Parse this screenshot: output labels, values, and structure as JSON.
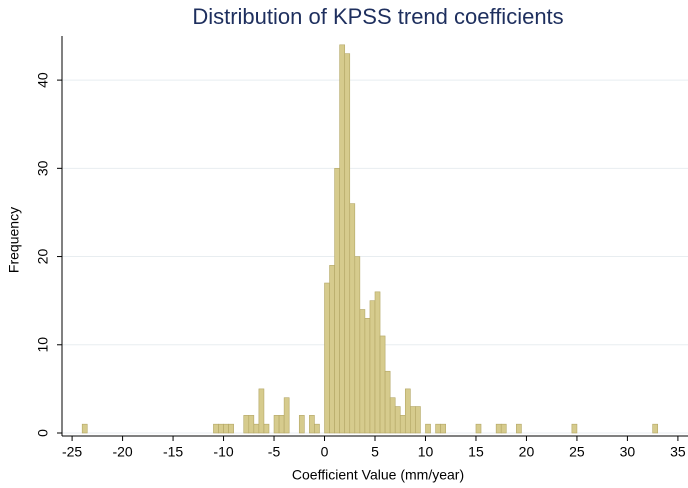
{
  "chart_data": {
    "type": "histogram",
    "title": "Distribution of KPSS trend coefficients",
    "x_label": "Coefficient Value (mm/year)",
    "y_label": "Frequency",
    "bins": [
      -24,
      -23.5,
      -23,
      -22.5,
      -22,
      -21.5,
      -21,
      -20.5,
      -20,
      -19.5,
      -19,
      -18.5,
      -18,
      -17.5,
      -17,
      -16.5,
      -16,
      -15.5,
      -15,
      -14.5,
      -14,
      -13.5,
      -13,
      -12.5,
      -12,
      -11.5,
      -11,
      -10.5,
      -10,
      -9.5,
      -9,
      -8.5,
      -8,
      -7.5,
      -7,
      -6.5,
      -6,
      -5.5,
      -5,
      -4.5,
      -4,
      -3.5,
      -3,
      -2.5,
      -2,
      -1.5,
      -1,
      -0.5,
      0,
      0.5,
      1,
      1.5,
      2,
      2.5,
      3,
      3.5,
      4,
      4.5,
      5,
      5.5,
      6,
      6.5,
      7,
      7.5,
      8,
      8.5,
      9,
      9.5,
      10,
      10.5,
      11,
      11.5,
      12,
      12.5,
      13,
      13.5,
      14,
      14.5,
      15,
      15.5,
      16,
      16.5,
      17,
      17.5,
      18,
      18.5,
      19,
      19.5,
      20,
      20.5,
      21,
      21.5,
      22,
      22.5,
      23,
      23.5,
      24,
      24.5,
      25,
      25.5,
      26,
      26.5,
      27,
      27.5,
      28,
      28.5,
      29,
      29.5,
      30,
      30.5,
      31,
      31.5,
      32,
      32.5,
      33
    ],
    "values": [
      1,
      0,
      0,
      0,
      0,
      0,
      0,
      0,
      0,
      0,
      0,
      0,
      0,
      0,
      0,
      0,
      0,
      0,
      0,
      0,
      0,
      0,
      0,
      0,
      0,
      0,
      1,
      1,
      1,
      1,
      0,
      0,
      2,
      2,
      1,
      5,
      1,
      0,
      2,
      2,
      4,
      0,
      0,
      2,
      0,
      2,
      1,
      0,
      17,
      19,
      30,
      44,
      43,
      26,
      20,
      14,
      13,
      15,
      16,
      11,
      7,
      4,
      3,
      2,
      5,
      3,
      3,
      0,
      1,
      0,
      1,
      1,
      0,
      0,
      0,
      0,
      0,
      0,
      1,
      0,
      0,
      0,
      1,
      1,
      0,
      0,
      1,
      0,
      0,
      0,
      0,
      0,
      0,
      0,
      0,
      0,
      0,
      1,
      0,
      0,
      0,
      0,
      0,
      0,
      0,
      0,
      0,
      0,
      0,
      0,
      0,
      0,
      0,
      1
    ],
    "color": "#d6cb8d",
    "edge_color": "#b3a665",
    "xlim": [
      -26,
      36
    ],
    "ylim": [
      0,
      45
    ],
    "xticks": [
      -25,
      -20,
      -15,
      -10,
      -5,
      0,
      5,
      10,
      15,
      20,
      25,
      30,
      35
    ],
    "yticks": [
      0,
      10,
      20,
      30,
      40
    ],
    "grid": true
  }
}
